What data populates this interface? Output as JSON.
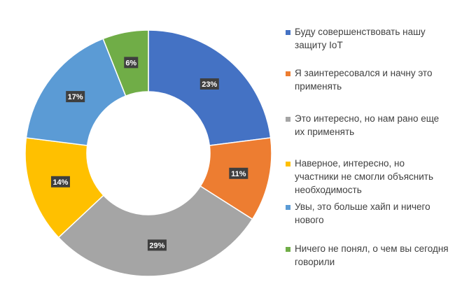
{
  "chart_data": {
    "type": "pie",
    "donut": true,
    "title": "",
    "legend_position": "right",
    "slices": [
      {
        "label": "Буду совершенствовать нашу защиту IoT",
        "value": 23,
        "display": "23%",
        "color": "#4472C4"
      },
      {
        "label": "Я заинтересовался и начну это применять",
        "value": 11,
        "display": "11%",
        "color": "#ED7D31"
      },
      {
        "label": "Это интересно, но нам рано еще их применять",
        "value": 29,
        "display": "29%",
        "color": "#A5A5A5"
      },
      {
        "label": "Наверное, интересно, но участники не смогли объяснить необходимость",
        "value": 14,
        "display": "14%",
        "color": "#FFC000"
      },
      {
        "label": "Увы, это больше хайп и ничего нового",
        "value": 17,
        "display": "17%",
        "color": "#5B9BD5"
      },
      {
        "label": "Ничего не понял, о чем вы сегодня говорили",
        "value": 6,
        "display": "6%",
        "color": "#70AD47"
      }
    ]
  }
}
